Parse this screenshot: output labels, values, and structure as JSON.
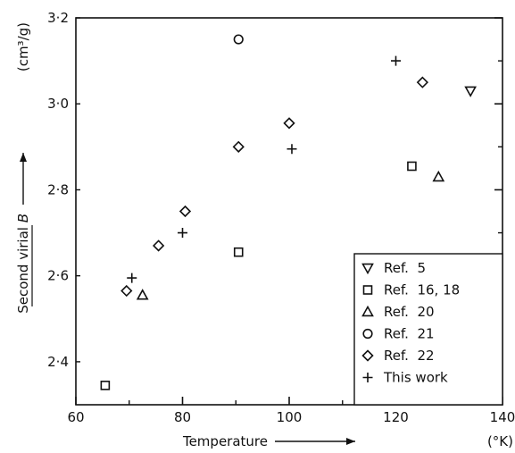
{
  "chart_data": {
    "type": "scatter",
    "xlabel": "Temperature",
    "xunit": "(°K)",
    "ylabel_prefix": "Second virial ",
    "ylabel_symbol": "B",
    "yunit": "(cm³/g)",
    "xlim": [
      60,
      140
    ],
    "ylim": [
      2.3,
      3.2
    ],
    "x_ticks": [
      60,
      80,
      100,
      120,
      140
    ],
    "y_ticks": [
      2.4,
      2.6,
      2.8,
      3.0,
      3.2
    ],
    "y_tick_labels": [
      "2·4",
      "2·6",
      "2·8",
      "3·0",
      "3·2"
    ],
    "grid": false,
    "legend_position": "bottom-right",
    "series": [
      {
        "name": "Ref.  5",
        "marker": "triangle-down",
        "points": [
          [
            134,
            3.03
          ]
        ]
      },
      {
        "name": "Ref.  16, 18",
        "marker": "square",
        "points": [
          [
            65.5,
            2.345
          ],
          [
            90.5,
            2.655
          ],
          [
            123,
            2.855
          ]
        ]
      },
      {
        "name": "Ref.  20",
        "marker": "triangle-up",
        "points": [
          [
            72.5,
            2.555
          ],
          [
            128,
            2.83
          ]
        ]
      },
      {
        "name": "Ref.  21",
        "marker": "circle",
        "points": [
          [
            90.5,
            3.15
          ]
        ]
      },
      {
        "name": "Ref.  22",
        "marker": "diamond",
        "points": [
          [
            69.5,
            2.565
          ],
          [
            75.5,
            2.67
          ],
          [
            80.5,
            2.75
          ],
          [
            90.5,
            2.9
          ],
          [
            100,
            2.955
          ],
          [
            125,
            3.05
          ]
        ]
      },
      {
        "name": "This work",
        "marker": "plus",
        "points": [
          [
            70.5,
            2.595
          ],
          [
            80,
            2.7
          ],
          [
            100.5,
            2.895
          ],
          [
            120,
            3.1
          ]
        ]
      }
    ]
  }
}
